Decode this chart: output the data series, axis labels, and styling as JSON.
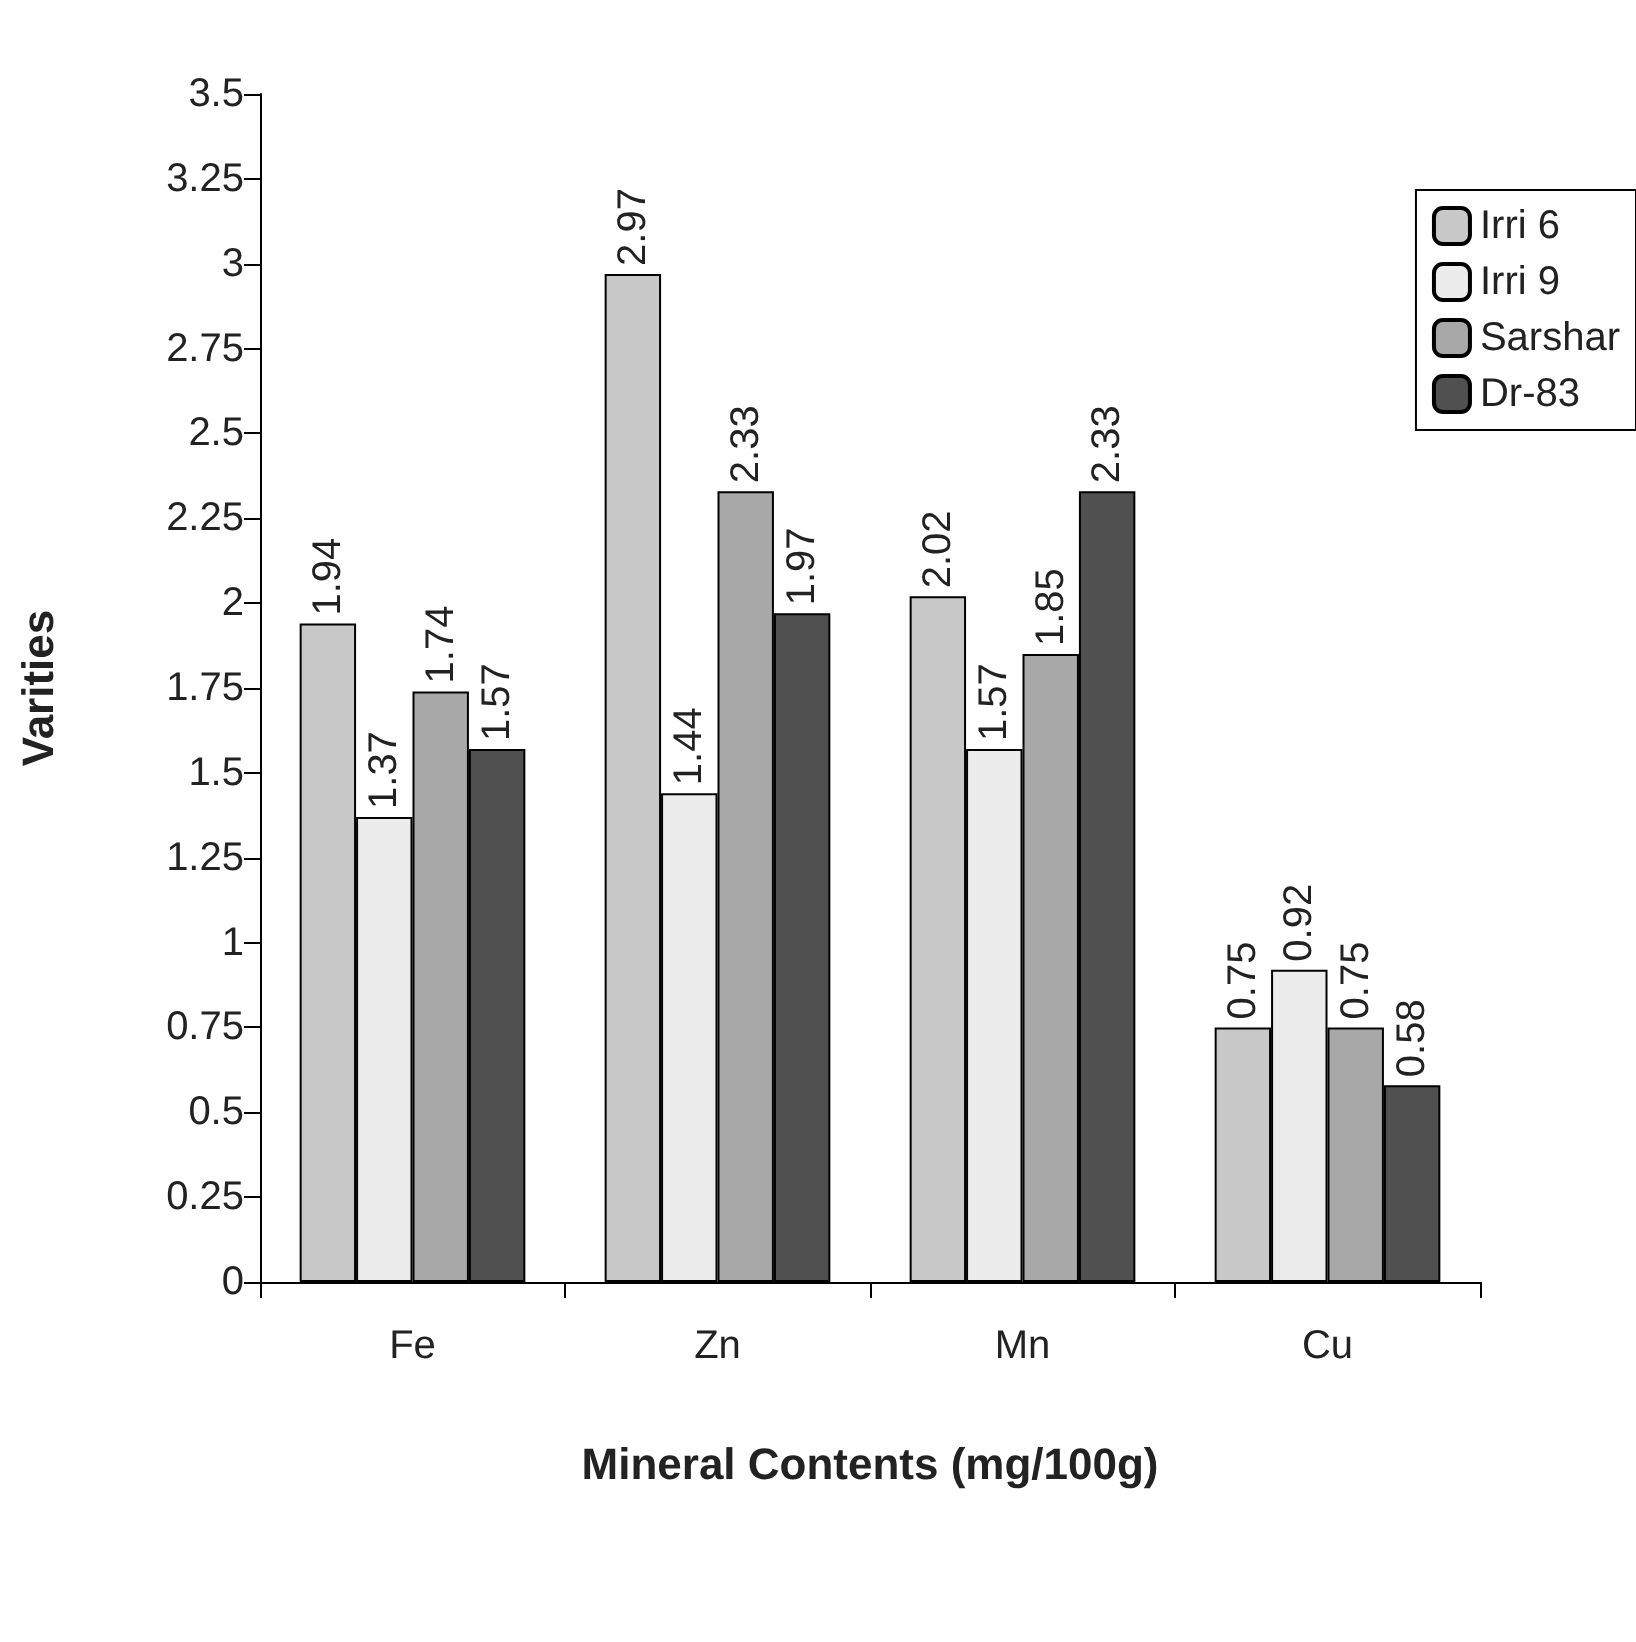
{
  "chart_data": {
    "type": "bar",
    "xlabel": "Mineral Contents (mg/100g)",
    "ylabel": "Varities",
    "categories": [
      "Fe",
      "Zn",
      "Mn",
      "Cu"
    ],
    "series": [
      {
        "name": "Irri 6",
        "color": "#c8c8c8",
        "values": [
          1.94,
          2.97,
          2.02,
          0.75
        ]
      },
      {
        "name": "Irri 9",
        "color": "#ececec",
        "values": [
          1.37,
          1.44,
          1.57,
          0.92
        ]
      },
      {
        "name": "Sarshar",
        "color": "#a8a8a8",
        "values": [
          1.74,
          2.33,
          1.85,
          0.75
        ]
      },
      {
        "name": "Dr-83",
        "color": "#505050",
        "values": [
          1.57,
          1.97,
          2.33,
          0.58
        ]
      }
    ],
    "ylim": [
      0,
      3.5
    ],
    "yticks": [
      0,
      0.25,
      0.5,
      0.75,
      1,
      1.25,
      1.5,
      1.75,
      2,
      2.25,
      2.5,
      2.75,
      3,
      3.25,
      3.5
    ],
    "grid": false,
    "legend": "top right",
    "data_labels": true
  }
}
